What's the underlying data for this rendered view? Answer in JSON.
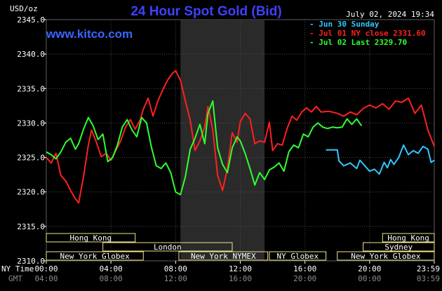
{
  "header": {
    "unit_label": "USD/oz",
    "title": "24 Hour Spot Gold (Bid)",
    "timestamp": "July 02, 2024 19:34",
    "brand": "www.kitco.com"
  },
  "colors": {
    "background": "#000000",
    "plot_background": "#000000",
    "night_shade": "#2a2a2a",
    "grid": "#4a4a4a",
    "title": "#4040ff",
    "brand": "#3a66ff",
    "timestamp": "#ffffff",
    "session_bar": "#f0e68c",
    "series_jun30": "#30c8ff",
    "series_jul01": "#ff2020",
    "series_jul02": "#30ff30"
  },
  "chart_data": {
    "type": "line",
    "title": "24 Hour Spot Gold (Bid)",
    "ylabel": "USD/oz",
    "ylim": [
      2310,
      2345
    ],
    "yticks": [
      2310,
      2315,
      2320,
      2325,
      2330,
      2335,
      2340,
      2345
    ],
    "ytick_labels": [
      "2310.0",
      "2315.0",
      "2320.0",
      "2325.0",
      "2330.0",
      "2335.0",
      "2340.0",
      "2345.0"
    ],
    "xlim": [
      0,
      24
    ],
    "xticks": [
      0,
      4,
      8,
      12,
      16,
      20,
      24
    ],
    "xtick_labels": [
      "00:00",
      "04:00",
      "08:00",
      "12:00",
      "16:00",
      "20:00",
      "23:59"
    ],
    "gmt_tick_labels": [
      "04:00",
      "08:00",
      "12:00",
      "16:00",
      "20:00",
      "00:00",
      "03:59"
    ],
    "x_axis_row_labels": [
      "NY Time",
      "GMT"
    ],
    "grid": true,
    "shaded_region": [
      8.3,
      13.5
    ],
    "legend": {
      "placement": "top-right",
      "entries": [
        "Jun 30 Sunday",
        "Jul 01 NY close 2331.60",
        "Jul 02 Last 2329.70"
      ]
    },
    "series": [
      {
        "name": "Jun 30 Sunday",
        "color": "#30c8ff",
        "x": [
          17.3,
          18.0,
          18.1,
          18.4,
          18.8,
          19.2,
          19.4,
          19.7,
          20.0,
          20.3,
          20.6,
          20.9,
          21.1,
          21.3,
          21.5,
          21.8,
          22.1,
          22.4,
          22.7,
          23.0,
          23.3,
          23.6,
          23.8,
          24.0
        ],
        "y": [
          2326.1,
          2326.1,
          2324.5,
          2323.8,
          2324.2,
          2323.4,
          2324.6,
          2323.8,
          2323.0,
          2323.3,
          2322.6,
          2324.3,
          2323.5,
          2324.7,
          2324.0,
          2325.0,
          2326.8,
          2325.4,
          2326.0,
          2325.6,
          2326.6,
          2326.2,
          2324.3,
          2324.6
        ]
      },
      {
        "name": "Jul 01 NY close 2331.60",
        "color": "#ff2020",
        "x": [
          0.0,
          0.3,
          0.6,
          0.9,
          1.2,
          1.5,
          1.8,
          2.0,
          2.3,
          2.6,
          2.8,
          3.1,
          3.4,
          3.7,
          4.0,
          4.3,
          4.6,
          4.9,
          5.2,
          5.5,
          5.8,
          6.0,
          6.3,
          6.6,
          6.9,
          7.2,
          7.5,
          7.8,
          8.0,
          8.3,
          8.6,
          8.9,
          9.2,
          9.5,
          9.8,
          10.0,
          10.3,
          10.6,
          10.9,
          11.2,
          11.5,
          11.8,
          12.0,
          12.3,
          12.6,
          12.9,
          13.2,
          13.5,
          13.8,
          14.0,
          14.3,
          14.6,
          14.9,
          15.2,
          15.5,
          15.8,
          16.1,
          16.4,
          16.7,
          17.0,
          17.5,
          18.0,
          18.4,
          18.8,
          19.2,
          19.6,
          20.0,
          20.4,
          20.8,
          21.2,
          21.6,
          22.0,
          22.4,
          22.8,
          23.2,
          23.6,
          24.0
        ],
        "y": [
          2325.0,
          2324.2,
          2325.6,
          2322.4,
          2321.6,
          2320.2,
          2319.0,
          2318.4,
          2322.2,
          2326.8,
          2329.0,
          2327.2,
          2325.1,
          2325.6,
          2324.6,
          2326.0,
          2327.4,
          2329.4,
          2330.5,
          2329.1,
          2330.4,
          2332.0,
          2333.6,
          2331.0,
          2333.2,
          2334.8,
          2336.2,
          2337.2,
          2337.6,
          2336.2,
          2333.2,
          2330.4,
          2326.0,
          2327.4,
          2329.4,
          2332.4,
          2329.0,
          2322.4,
          2320.2,
          2323.4,
          2328.6,
          2327.2,
          2330.2,
          2331.4,
          2330.6,
          2327.0,
          2327.4,
          2327.2,
          2330.1,
          2326.0,
          2327.0,
          2326.8,
          2329.2,
          2331.0,
          2330.4,
          2331.6,
          2332.2,
          2331.6,
          2332.4,
          2331.6,
          2331.7,
          2331.4,
          2331.0,
          2331.6,
          2331.2,
          2332.1,
          2332.6,
          2332.2,
          2332.8,
          2332.0,
          2333.2,
          2333.0,
          2333.6,
          2331.4,
          2332.6,
          2329.0,
          2326.6
        ]
      },
      {
        "name": "Jul 02 Last 2329.70",
        "color": "#30ff30",
        "x": [
          0.0,
          0.3,
          0.6,
          0.9,
          1.2,
          1.5,
          1.8,
          2.0,
          2.3,
          2.6,
          2.9,
          3.2,
          3.5,
          3.8,
          4.1,
          4.4,
          4.7,
          5.0,
          5.3,
          5.6,
          5.9,
          6.2,
          6.5,
          6.8,
          7.1,
          7.4,
          7.7,
          8.0,
          8.3,
          8.6,
          8.9,
          9.2,
          9.5,
          9.8,
          10.0,
          10.3,
          10.6,
          10.9,
          11.2,
          11.5,
          11.8,
          12.0,
          12.3,
          12.6,
          12.9,
          13.2,
          13.5,
          13.8,
          14.1,
          14.4,
          14.7,
          15.0,
          15.3,
          15.6,
          15.9,
          16.2,
          16.5,
          16.8,
          17.1,
          17.4,
          17.7,
          18.0,
          18.3,
          18.6,
          18.9,
          19.2,
          19.5
        ],
        "y": [
          2325.8,
          2325.4,
          2324.8,
          2325.8,
          2327.2,
          2327.8,
          2326.2,
          2327.0,
          2329.1,
          2330.8,
          2329.6,
          2327.6,
          2328.4,
          2324.4,
          2325.0,
          2326.8,
          2329.4,
          2330.5,
          2329.0,
          2328.0,
          2330.8,
          2330.0,
          2326.5,
          2323.8,
          2323.4,
          2324.2,
          2322.8,
          2320.0,
          2319.6,
          2322.2,
          2326.2,
          2327.8,
          2329.8,
          2327.0,
          2331.4,
          2333.2,
          2326.4,
          2324.0,
          2322.8,
          2326.4,
          2328.0,
          2327.4,
          2325.6,
          2323.4,
          2321.0,
          2322.8,
          2321.8,
          2323.2,
          2323.6,
          2324.2,
          2323.0,
          2325.8,
          2326.8,
          2326.4,
          2328.4,
          2328.0,
          2329.4,
          2330.0,
          2329.4,
          2329.2,
          2329.4,
          2329.3,
          2329.4,
          2330.6,
          2329.8,
          2330.6,
          2329.6
        ]
      }
    ]
  },
  "sessions": [
    {
      "name": "Hong Kong",
      "start": 0.0,
      "end": 5.5,
      "row": 0
    },
    {
      "name": "London",
      "start": 3.5,
      "end": 11.5,
      "row": 1
    },
    {
      "name": "New York Globex",
      "start": 0.0,
      "end": 6.0,
      "row": 2
    },
    {
      "name": "New York NYMEX",
      "start": 8.2,
      "end": 13.7,
      "row": 2
    },
    {
      "name": "NY Globex",
      "start": 13.8,
      "end": 17.3,
      "row": 2
    },
    {
      "name": "Hong Kong",
      "start": 20.8,
      "end": 24.0,
      "row": 0
    },
    {
      "name": "Sydney",
      "start": 19.6,
      "end": 24.0,
      "row": 1
    },
    {
      "name": "New York Globex",
      "start": 18.0,
      "end": 24.0,
      "row": 2
    }
  ]
}
